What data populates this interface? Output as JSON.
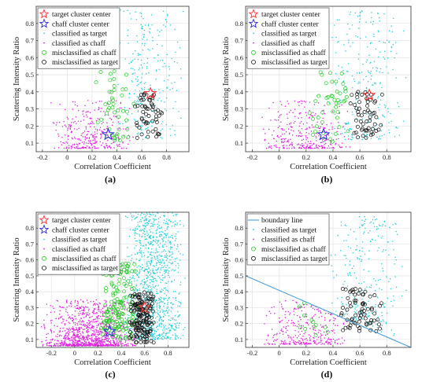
{
  "figure": {
    "captions": [
      "(a)",
      "(b)",
      "(c)",
      "(d)"
    ]
  },
  "colors": {
    "target_center": "#ff3030",
    "chaff_center": "#2a2ae0",
    "classified_target": "#20d0e0",
    "classified_chaff": "#e020e0",
    "misclassified_chaff": "#22cc22",
    "misclassified_target": "#111111",
    "boundary": "#4a9fd8",
    "grid": "#e6e6e6"
  },
  "chart_data": [
    {
      "type": "scatter",
      "caption": "(a)",
      "xlabel": "Correlation Coefficient",
      "ylabel": "Scattering Intensity Ratio",
      "xlim": [
        -0.25,
        0.98
      ],
      "ylim": [
        0.05,
        0.9
      ],
      "xticks": [
        "-0.2",
        "0",
        "0.2",
        "0.4",
        "0.6",
        "0.8"
      ],
      "yticks": [
        "0.1",
        "0.2",
        "0.3",
        "0.4",
        "0.5",
        "0.6",
        "0.7",
        "0.8"
      ],
      "grid": true,
      "legend_position": "top-left",
      "legend": [
        "target cluster center",
        "chaff cluster center",
        "classified as target",
        "classified as chaff",
        "misclassified as chaff",
        "misclassified as target"
      ],
      "centers": {
        "target": [
          0.67,
          0.39
        ],
        "chaff": [
          0.33,
          0.15
        ]
      },
      "series": [
        {
          "name": "classified as target",
          "x_range": [
            0.35,
            0.95
          ],
          "y_range": [
            0.12,
            0.88
          ],
          "approx_count": 260
        },
        {
          "name": "classified as chaff",
          "x_range": [
            -0.15,
            0.55
          ],
          "y_range": [
            0.07,
            0.35
          ],
          "approx_count": 320
        },
        {
          "name": "misclassified as chaff",
          "x_range": [
            0.22,
            0.55
          ],
          "y_range": [
            0.1,
            0.52
          ],
          "approx_count": 45
        },
        {
          "name": "misclassified as target",
          "x_range": [
            0.52,
            0.78
          ],
          "y_range": [
            0.13,
            0.4
          ],
          "approx_count": 55
        }
      ]
    },
    {
      "type": "scatter",
      "caption": "(b)",
      "xlabel": "Correlation Coefficient",
      "ylabel": "Scattering Intensity Ratio",
      "xlim": [
        -0.25,
        0.98
      ],
      "ylim": [
        0.05,
        0.9
      ],
      "xticks": [
        "-0.2",
        "0",
        "0.2",
        "0.4",
        "0.6",
        "0.8"
      ],
      "yticks": [
        "0.1",
        "0.2",
        "0.3",
        "0.4",
        "0.5",
        "0.6",
        "0.7",
        "0.8"
      ],
      "grid": true,
      "legend_position": "top-left",
      "legend": [
        "target cluster center",
        "chaff cluster center",
        "classified as target",
        "classified as chaff",
        "misclassified as chaff",
        "misclassified as target"
      ],
      "centers": {
        "target": [
          0.67,
          0.38
        ],
        "chaff": [
          0.33,
          0.15
        ]
      },
      "series": [
        {
          "name": "classified as target",
          "x_range": [
            0.35,
            0.95
          ],
          "y_range": [
            0.12,
            0.88
          ],
          "approx_count": 260
        },
        {
          "name": "classified as chaff",
          "x_range": [
            -0.15,
            0.55
          ],
          "y_range": [
            0.07,
            0.35
          ],
          "approx_count": 320
        },
        {
          "name": "misclassified as chaff",
          "x_range": [
            0.22,
            0.55
          ],
          "y_range": [
            0.1,
            0.52
          ],
          "approx_count": 45
        },
        {
          "name": "misclassified as target",
          "x_range": [
            0.52,
            0.78
          ],
          "y_range": [
            0.13,
            0.4
          ],
          "approx_count": 55
        }
      ]
    },
    {
      "type": "scatter",
      "caption": "(c)",
      "xlabel": "Correlation Coefficient",
      "ylabel": "Scattering Intensity Ratio",
      "xlim": [
        -0.33,
        0.98
      ],
      "ylim": [
        0.05,
        0.9
      ],
      "xticks": [
        "-0.2",
        "0",
        "0.2",
        "0.4",
        "0.6",
        "0.8"
      ],
      "yticks": [
        "0.1",
        "0.2",
        "0.3",
        "0.4",
        "0.5",
        "0.6",
        "0.7",
        "0.8"
      ],
      "grid": true,
      "legend_position": "top-left",
      "legend": [
        "target cluster center",
        "chaff cluster center",
        "classified as target",
        "classified as chaff",
        "misclassified as chaff",
        "misclassified as target"
      ],
      "centers": {
        "target": [
          0.6,
          0.3
        ],
        "chaff": [
          0.3,
          0.15
        ]
      },
      "series": [
        {
          "name": "classified as target",
          "x_range": [
            0.4,
            0.95
          ],
          "y_range": [
            0.1,
            0.9
          ],
          "approx_count": 1100
        },
        {
          "name": "classified as chaff",
          "x_range": [
            -0.3,
            0.55
          ],
          "y_range": [
            0.06,
            0.35
          ],
          "approx_count": 1100
        },
        {
          "name": "misclassified as chaff",
          "x_range": [
            0.2,
            0.55
          ],
          "y_range": [
            0.1,
            0.58
          ],
          "approx_count": 160
        },
        {
          "name": "misclassified as target",
          "x_range": [
            0.45,
            0.7
          ],
          "y_range": [
            0.08,
            0.4
          ],
          "approx_count": 160
        }
      ]
    },
    {
      "type": "scatter",
      "caption": "(d)",
      "xlabel": "Correlation Coefficient",
      "ylabel": "Scattering Intensity Ratio",
      "xlim": [
        -0.25,
        0.98
      ],
      "ylim": [
        0.05,
        0.9
      ],
      "xticks": [
        "-0.2",
        "0",
        "0.2",
        "0.4",
        "0.6",
        "0.8"
      ],
      "yticks": [
        "0.1",
        "0.2",
        "0.3",
        "0.4",
        "0.5",
        "0.6",
        "0.7",
        "0.8"
      ],
      "grid": true,
      "legend_position": "top-left",
      "legend": [
        "boundary line",
        "classified as target",
        "classified as chaff",
        "misclassified as chaff",
        "misclassified as target"
      ],
      "boundary_line": {
        "x": [
          -0.25,
          0.98
        ],
        "y": [
          0.5,
          0.05
        ]
      },
      "series": [
        {
          "name": "classified as target",
          "x_range": [
            0.35,
            0.95
          ],
          "y_range": [
            0.12,
            0.88
          ],
          "approx_count": 260
        },
        {
          "name": "classified as chaff",
          "x_range": [
            -0.15,
            0.55
          ],
          "y_range": [
            0.07,
            0.35
          ],
          "approx_count": 320
        },
        {
          "name": "misclassified as chaff",
          "x_range": [
            0.05,
            0.38
          ],
          "y_range": [
            0.12,
            0.33
          ],
          "approx_count": 12
        },
        {
          "name": "misclassified as target",
          "x_range": [
            0.44,
            0.78
          ],
          "y_range": [
            0.15,
            0.42
          ],
          "approx_count": 70
        }
      ]
    }
  ]
}
